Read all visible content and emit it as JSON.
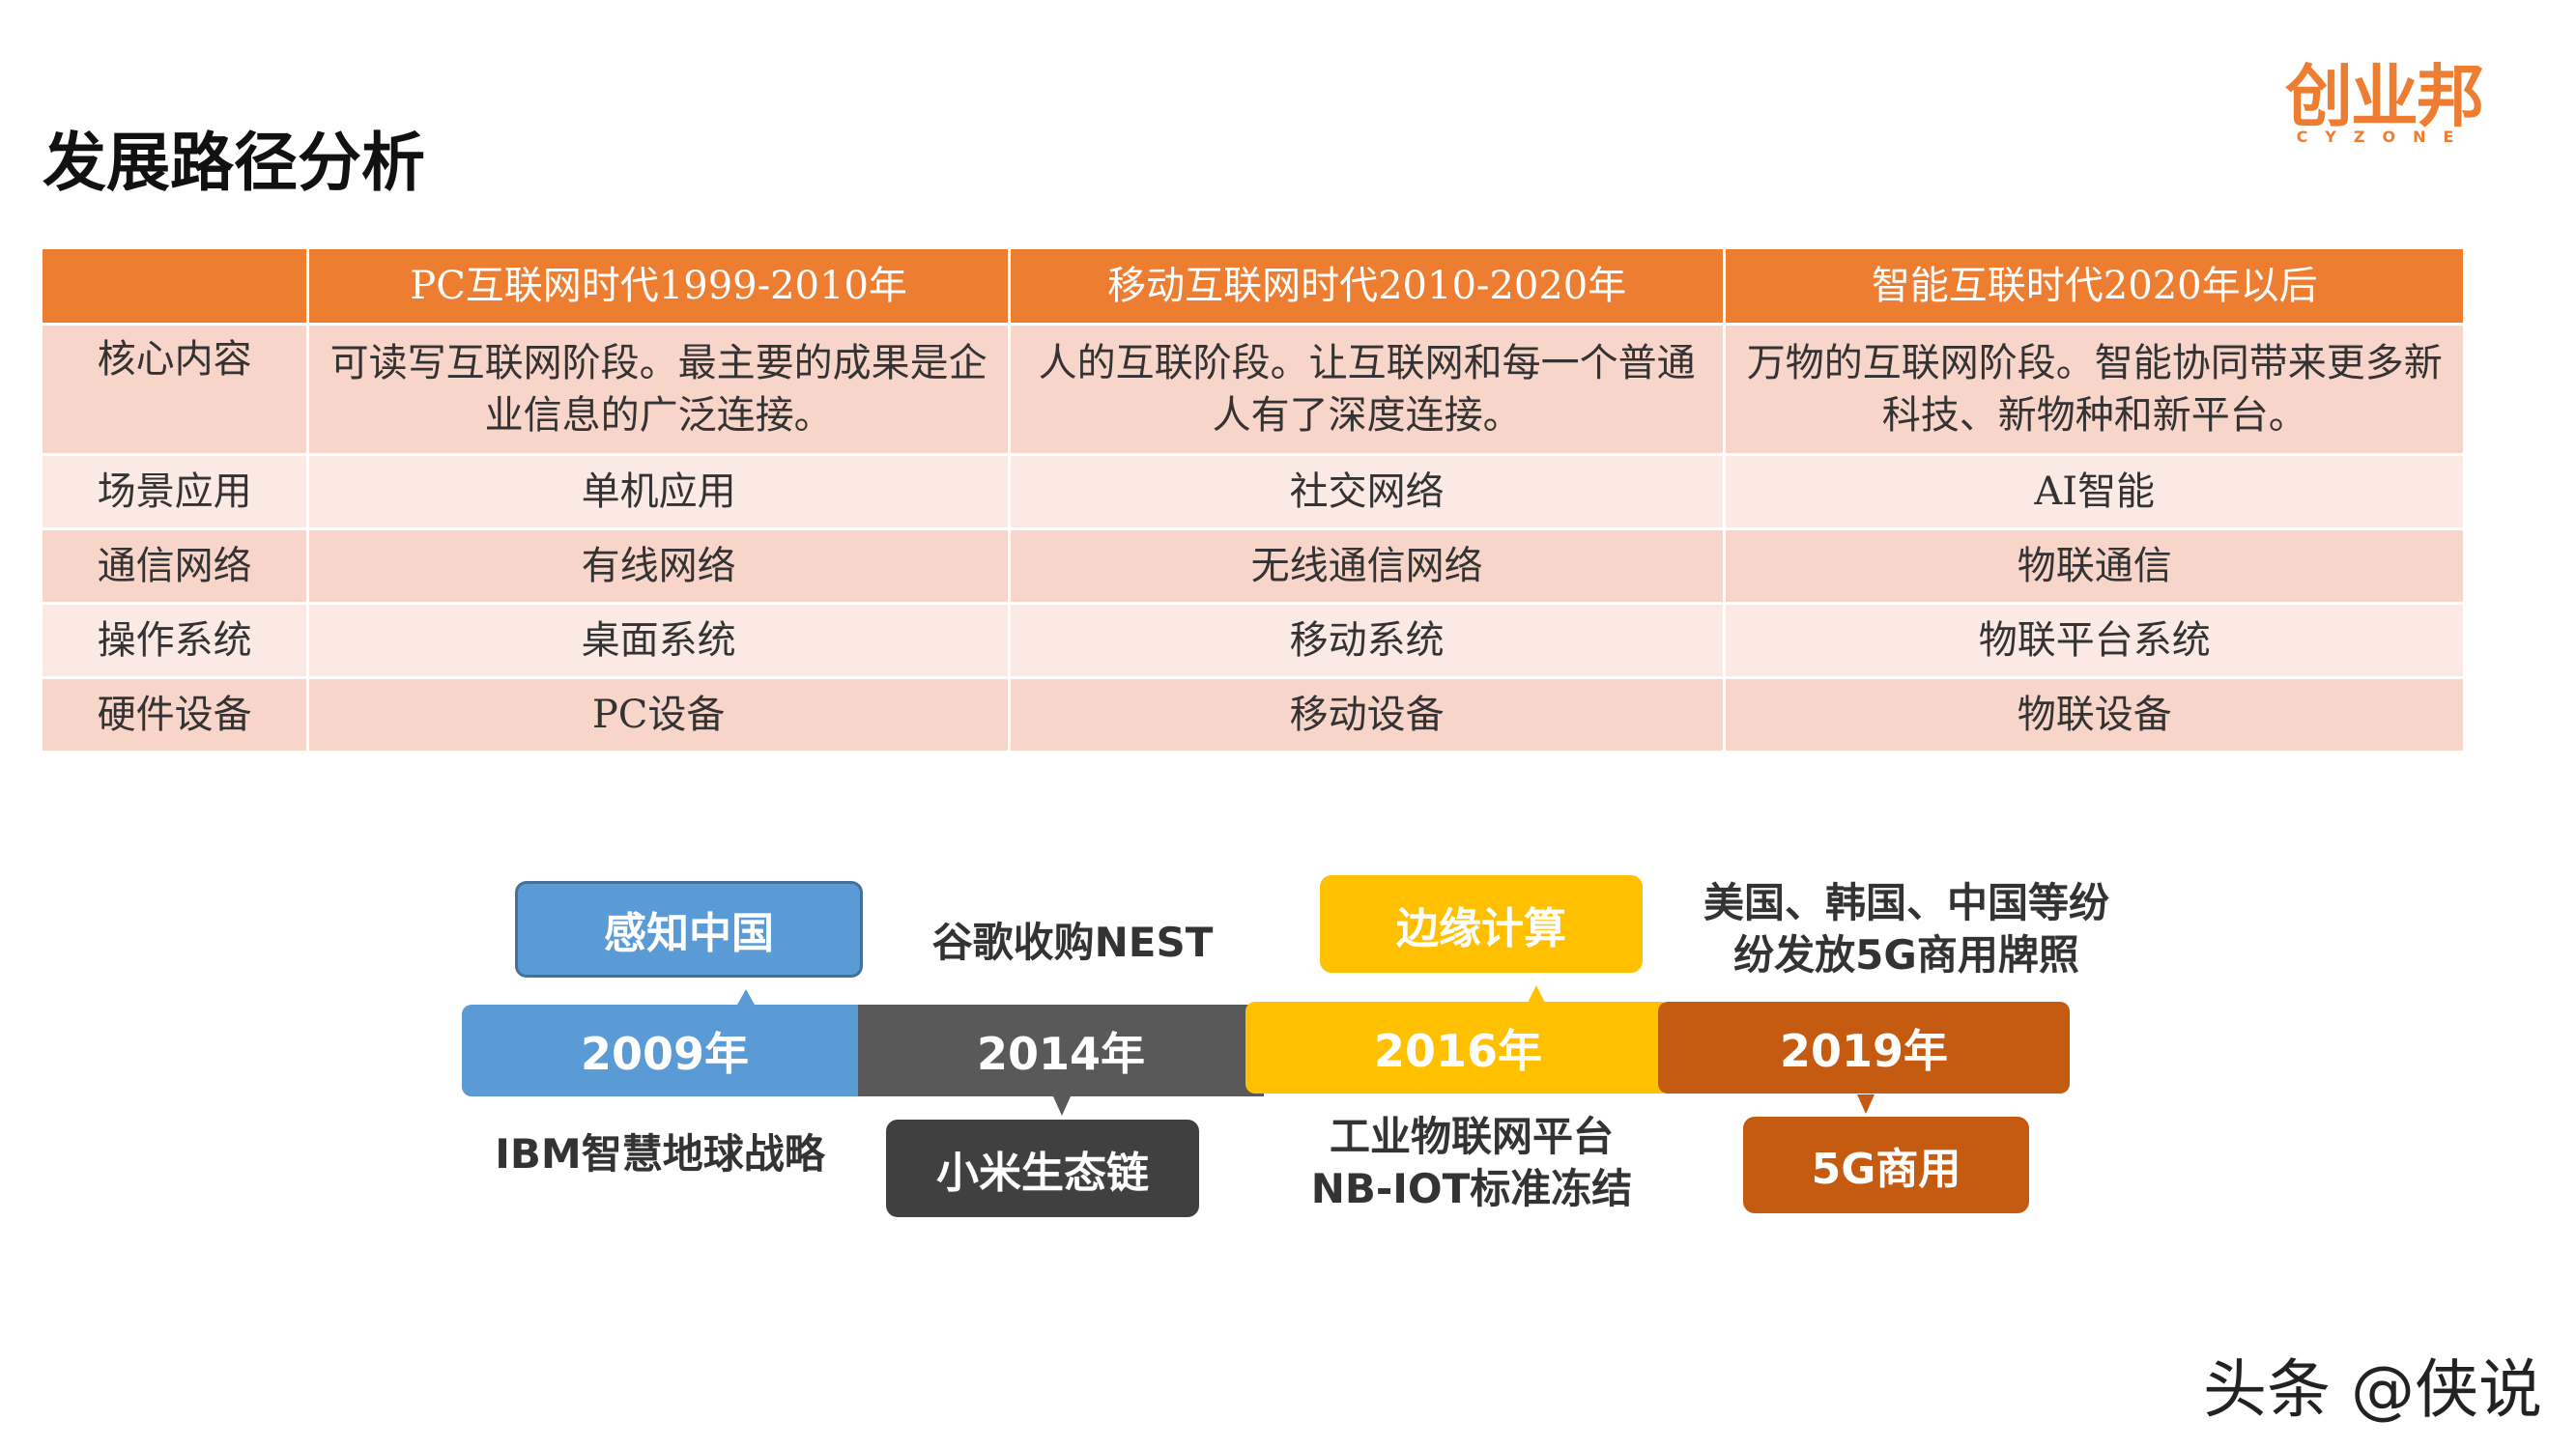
{
  "title": "发展路径分析",
  "logo": {
    "cn": "创业邦",
    "en": "CYZONE"
  },
  "table": {
    "headers": [
      "",
      "PC互联网时代1999-2010年",
      "移动互联网时代2010-2020年",
      "智能互联时代2020年以后"
    ],
    "rows": [
      [
        "核心内容",
        "可读写互联网阶段。最主要的成果是企业信息的广泛连接。",
        "人的互联阶段。让互联网和每一个普通人有了深度连接。",
        "万物的互联网阶段。智能协同带来更多新科技、新物种和新平台。"
      ],
      [
        "场景应用",
        "单机应用",
        "社交网络",
        "AI智能"
      ],
      [
        "通信网络",
        "有线网络",
        "无线通信网络",
        "物联通信"
      ],
      [
        "操作系统",
        "桌面系统",
        "移动系统",
        "物联平台系统"
      ],
      [
        "硬件设备",
        "PC设备",
        "移动设备",
        "物联设备"
      ]
    ]
  },
  "timeline": {
    "years": [
      "2009年",
      "2014年",
      "2016年",
      "2019年"
    ],
    "boxes": [
      "感知中国",
      "小米生态链",
      "边缘计算",
      "5G商用"
    ],
    "texts": [
      "谷歌收购NEST",
      "IBM智慧地球战略",
      "工业物联网平台",
      "NB-IOT标准冻结",
      "美国、韩国、中国等纷",
      "纷发放5G商用牌照"
    ],
    "colors": {
      "blue": "#5B9BD5",
      "gray": "#595959",
      "yellow": "#FFC000",
      "orange": "#C55A11",
      "dark": "#404040"
    }
  },
  "watermark": "头条 @侠说"
}
